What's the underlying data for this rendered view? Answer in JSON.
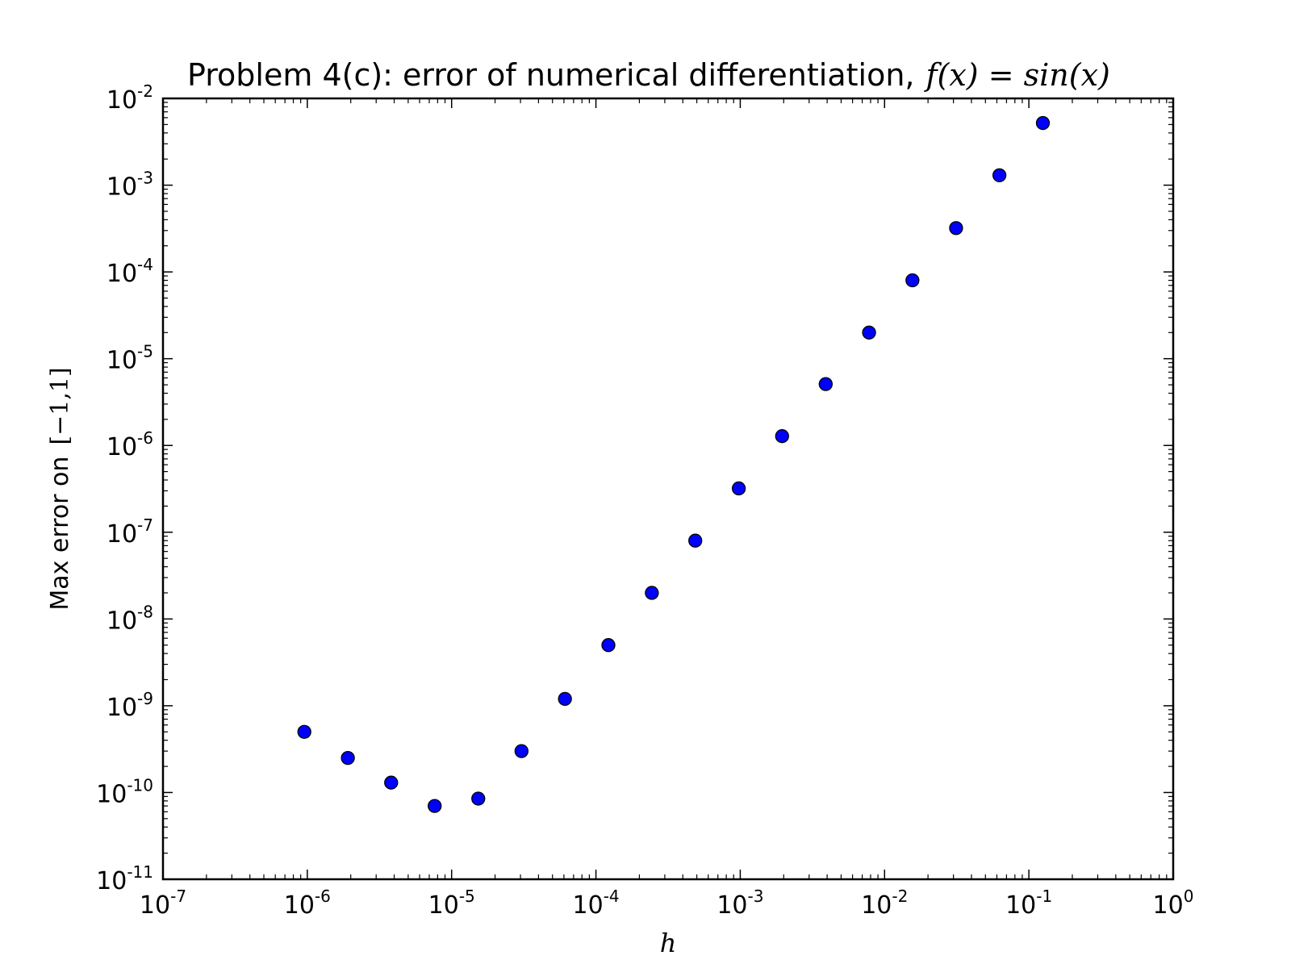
{
  "chart_data": {
    "type": "scatter",
    "title": "Problem 4(c): error of numerical differentiation,",
    "title_math": "f(x) = sin(x)",
    "xlabel": "h",
    "ylabel": "Max error on",
    "ylabel_math": "[−1,1]",
    "xscale": "log",
    "yscale": "log",
    "xlim": [
      1e-07,
      1
    ],
    "ylim": [
      1e-11,
      0.01
    ],
    "x_ticks": [
      {
        "base": "10",
        "exp": "-7"
      },
      {
        "base": "10",
        "exp": "-6"
      },
      {
        "base": "10",
        "exp": "-5"
      },
      {
        "base": "10",
        "exp": "-4"
      },
      {
        "base": "10",
        "exp": "-3"
      },
      {
        "base": "10",
        "exp": "-2"
      },
      {
        "base": "10",
        "exp": "-1"
      },
      {
        "base": "10",
        "exp": "0"
      }
    ],
    "y_ticks": [
      {
        "base": "10",
        "exp": "-11"
      },
      {
        "base": "10",
        "exp": "-10"
      },
      {
        "base": "10",
        "exp": "-9"
      },
      {
        "base": "10",
        "exp": "-8"
      },
      {
        "base": "10",
        "exp": "-7"
      },
      {
        "base": "10",
        "exp": "-6"
      },
      {
        "base": "10",
        "exp": "-5"
      },
      {
        "base": "10",
        "exp": "-4"
      },
      {
        "base": "10",
        "exp": "-3"
      },
      {
        "base": "10",
        "exp": "-2"
      }
    ],
    "marker_color": "#0000ff",
    "marker_edge_color": "#000000",
    "grid": false,
    "series": [
      {
        "name": "max error",
        "x": [
          9.54e-07,
          1.91e-06,
          3.81e-06,
          7.63e-06,
          1.53e-05,
          3.05e-05,
          6.1e-05,
          0.000122,
          0.000244,
          0.000488,
          0.000977,
          0.00195,
          0.00391,
          0.00781,
          0.0156,
          0.0313,
          0.0625,
          0.125
        ],
        "y": [
          5e-10,
          2.5e-10,
          1.3e-10,
          7e-11,
          8.5e-11,
          3e-10,
          1.2e-09,
          5e-09,
          2e-08,
          8e-08,
          3.2e-07,
          1.28e-06,
          5.1e-06,
          2e-05,
          8e-05,
          0.00032,
          0.0013,
          0.0052
        ]
      }
    ]
  }
}
